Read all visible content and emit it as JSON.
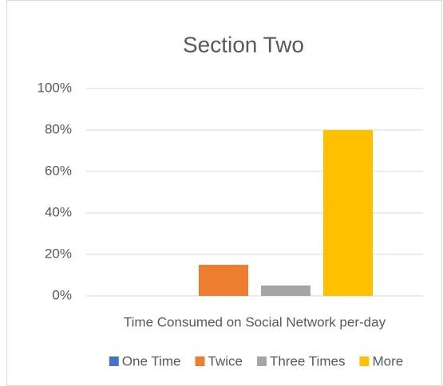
{
  "chart_data": {
    "type": "bar",
    "title": "Section Two",
    "categories": [
      "Time Consumed on Social Network per-day"
    ],
    "series": [
      {
        "name": "One Time",
        "color": "#4472c4",
        "values": [
          0
        ]
      },
      {
        "name": "Twice",
        "color": "#ed7d31",
        "values": [
          15
        ]
      },
      {
        "name": "Three Times",
        "color": "#a5a5a5",
        "values": [
          5
        ]
      },
      {
        "name": "More",
        "color": "#ffc000",
        "values": [
          80
        ]
      }
    ],
    "ylim": [
      0,
      100
    ],
    "yticks": [
      {
        "value": 0,
        "label": "0%"
      },
      {
        "value": 20,
        "label": "20%"
      },
      {
        "value": 40,
        "label": "40%"
      },
      {
        "value": 60,
        "label": "60%"
      },
      {
        "value": 80,
        "label": "80%"
      },
      {
        "value": 100,
        "label": "100%"
      }
    ],
    "grid": true,
    "legend": "bottom"
  }
}
